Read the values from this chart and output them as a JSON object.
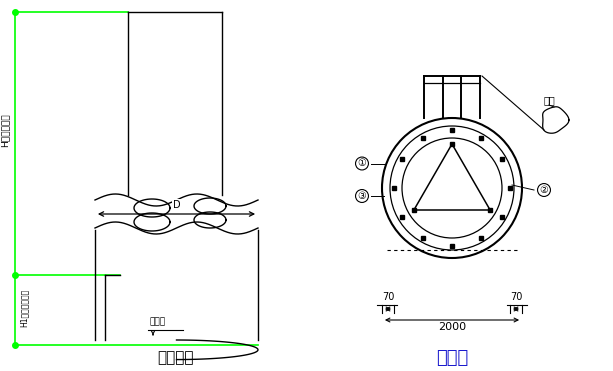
{
  "bg_color": "#ffffff",
  "line_color": "#000000",
  "green_color": "#00ff00",
  "title_left": "桩身大样",
  "title_right": "桩截面",
  "title_right_color": "#1a1acd",
  "label_H": "H（桩身长）",
  "label_H1": "H1（入岩深度）",
  "label_D": "D",
  "label_chili": "持力层",
  "label_hanjie": "焊接",
  "dim_70_left": "70",
  "dim_70_right": "70",
  "dim_2000": "2000",
  "circle1_label": "①",
  "circle2_label": "②",
  "circle3_label": "③"
}
